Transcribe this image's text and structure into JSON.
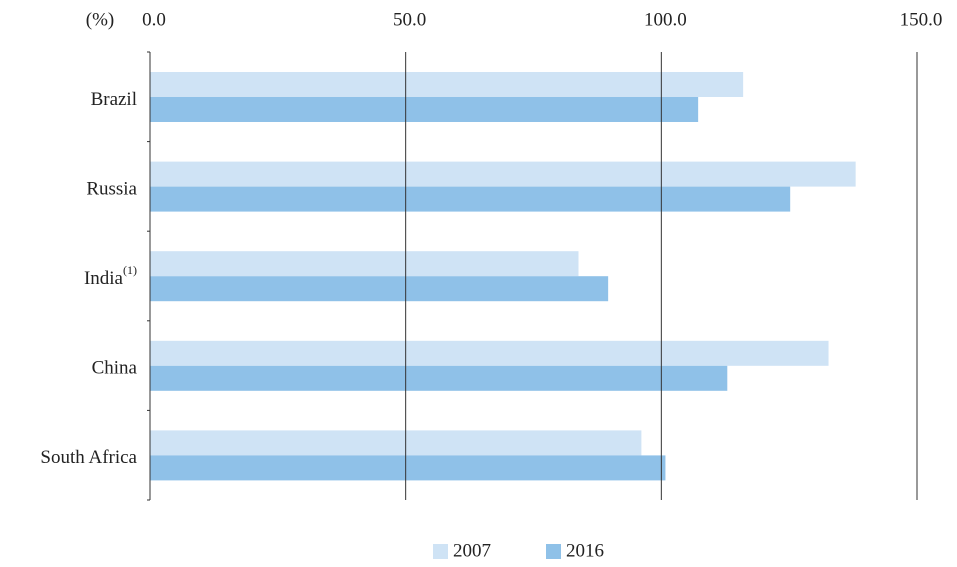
{
  "chart_data": {
    "type": "hbar",
    "axis_label": "(%)",
    "categories": [
      "Brazil",
      "Russia",
      "India",
      "China",
      "South Africa"
    ],
    "category_notes": [
      null,
      null,
      "(1)",
      null,
      null
    ],
    "series": [
      {
        "name": "2007",
        "color": "#cfe3f5",
        "values": [
          116,
          138,
          83.8,
          132.7,
          96.1
        ]
      },
      {
        "name": "2016",
        "color": "#8fc1e8",
        "values": [
          107.2,
          125.2,
          89.6,
          112.9,
          100.8
        ]
      }
    ],
    "xlim": [
      0,
      150
    ],
    "xticks": [
      {
        "value": 0,
        "label": "0.0"
      },
      {
        "value": 50,
        "label": "50.0"
      },
      {
        "value": 100,
        "label": "100.0"
      },
      {
        "value": 150,
        "label": "150.0"
      }
    ],
    "grid": true
  }
}
